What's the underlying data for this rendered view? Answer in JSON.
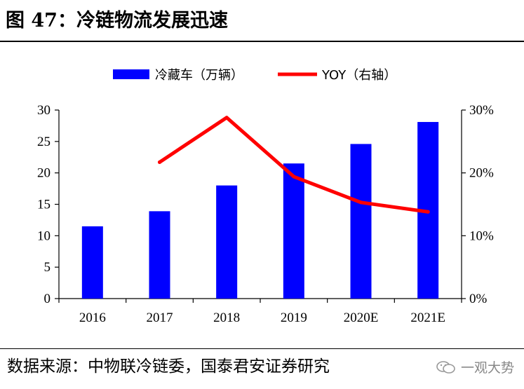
{
  "header": {
    "title": "图 47：冷链物流发展迅速"
  },
  "footer": {
    "source": "数据来源：中物联冷链委，国泰君安证券研究",
    "watermark": "一观大势"
  },
  "chart_data": {
    "type": "bar",
    "categories": [
      "2016",
      "2017",
      "2018",
      "2019",
      "2020E",
      "2021E"
    ],
    "series": [
      {
        "name": "冷藏车（万辆）",
        "type": "bar",
        "axis": "left",
        "color": "#0000FF",
        "values": [
          11.5,
          13.9,
          18.0,
          21.5,
          24.6,
          28.1
        ]
      },
      {
        "name": "YOY（右轴）",
        "type": "line",
        "axis": "right",
        "color": "#FF0000",
        "values": [
          null,
          21.7,
          28.8,
          19.4,
          15.3,
          13.8
        ]
      }
    ],
    "ylim": [
      0,
      30
    ],
    "yticks": [
      "0",
      "5",
      "10",
      "15",
      "20",
      "25",
      "30"
    ],
    "y2lim": [
      0,
      30
    ],
    "y2ticks": [
      "0%",
      "10%",
      "20%",
      "30%"
    ],
    "legend": "top",
    "grid": false
  }
}
